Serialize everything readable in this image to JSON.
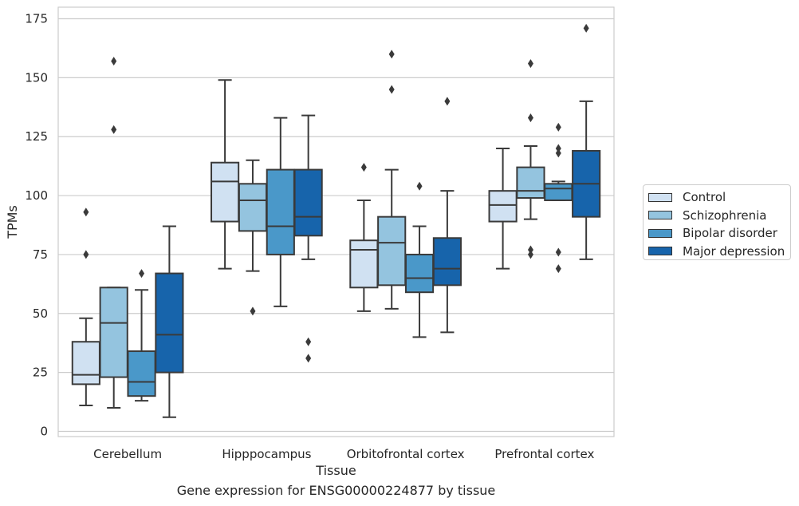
{
  "chart_data": {
    "type": "box",
    "xlabel": "Tissue",
    "ylabel": "TPMs",
    "caption": "Gene expression for ENSG00000224877 by tissue",
    "ylim": [
      -2,
      180
    ],
    "yticks": [
      0,
      25,
      50,
      75,
      100,
      125,
      150,
      175
    ],
    "grid": "horizontal",
    "legend_position": "right",
    "categories": [
      "Cerebellum",
      "Hipppocampus",
      "Orbitofrontal cortex",
      "Prefrontal cortex"
    ],
    "series": [
      {
        "name": "Control",
        "color": "#d0e1f2",
        "boxes": [
          {
            "min": 11,
            "q1": 20,
            "median": 24,
            "q3": 38,
            "max": 48,
            "outliers": [
              93,
              75
            ]
          },
          {
            "min": 69,
            "q1": 89,
            "median": 106,
            "q3": 114,
            "max": 149,
            "outliers": []
          },
          {
            "min": 51,
            "q1": 61,
            "median": 77,
            "q3": 81,
            "max": 98,
            "outliers": [
              112
            ]
          },
          {
            "min": 69,
            "q1": 89,
            "median": 96,
            "q3": 102,
            "max": 120,
            "outliers": []
          }
        ]
      },
      {
        "name": "Schizophrenia",
        "color": "#94c4df",
        "boxes": [
          {
            "min": 10,
            "q1": 23,
            "median": 46,
            "q3": 61,
            "max": 61,
            "outliers": [
              157,
              128
            ]
          },
          {
            "min": 68,
            "q1": 85,
            "median": 98,
            "q3": 105,
            "max": 115,
            "outliers": [
              51
            ]
          },
          {
            "min": 52,
            "q1": 62,
            "median": 80,
            "q3": 91,
            "max": 111,
            "outliers": [
              160,
              145
            ]
          },
          {
            "min": 90,
            "q1": 99,
            "median": 102,
            "q3": 112,
            "max": 121,
            "outliers": [
              156,
              133,
              77,
              75
            ]
          }
        ]
      },
      {
        "name": "Bipolar disorder",
        "color": "#4a98c9",
        "boxes": [
          {
            "min": 13,
            "q1": 15,
            "median": 21,
            "q3": 34,
            "max": 60,
            "outliers": [
              67
            ]
          },
          {
            "min": 53,
            "q1": 75,
            "median": 87,
            "q3": 111,
            "max": 133,
            "outliers": []
          },
          {
            "min": 40,
            "q1": 59,
            "median": 65,
            "q3": 75,
            "max": 87,
            "outliers": [
              104
            ]
          },
          {
            "min": 98,
            "q1": 98,
            "median": 103,
            "q3": 105,
            "max": 106,
            "outliers": [
              129,
              120,
              118,
              76,
              69
            ]
          }
        ]
      },
      {
        "name": "Major depression",
        "color": "#1764ab",
        "boxes": [
          {
            "min": 6,
            "q1": 25,
            "median": 41,
            "q3": 67,
            "max": 87,
            "outliers": []
          },
          {
            "min": 73,
            "q1": 83,
            "median": 91,
            "q3": 111,
            "max": 134,
            "outliers": [
              38,
              31
            ]
          },
          {
            "min": 42,
            "q1": 62,
            "median": 69,
            "q3": 82,
            "max": 102,
            "outliers": [
              140
            ]
          },
          {
            "min": 73,
            "q1": 91,
            "median": 105,
            "q3": 119,
            "max": 140,
            "outliers": [
              171
            ]
          }
        ]
      }
    ]
  }
}
